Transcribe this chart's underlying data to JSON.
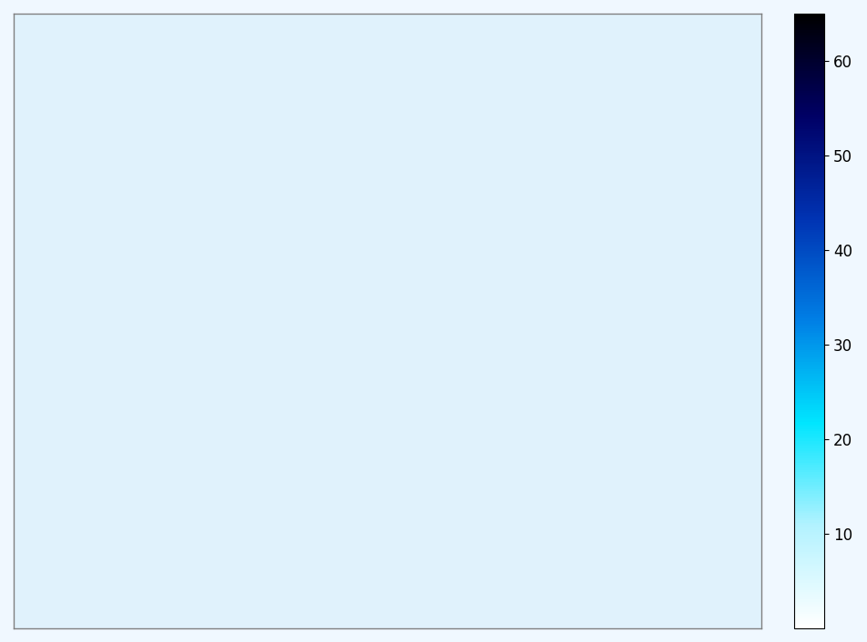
{
  "title": "",
  "cmap": "Blues_r_custom",
  "vmin": 0,
  "vmax": 65,
  "colorbar_ticks": [
    10,
    20,
    30,
    40,
    50,
    60
  ],
  "bg_color": "#e8f4f8",
  "fig_bg_color": "#f0f8ff",
  "bins": 80,
  "xlim": [
    -3.5,
    3.5
  ],
  "ylim": [
    -4.5,
    4.5
  ],
  "seed": 42,
  "n_trajectories": 200,
  "n_steps": 300
}
